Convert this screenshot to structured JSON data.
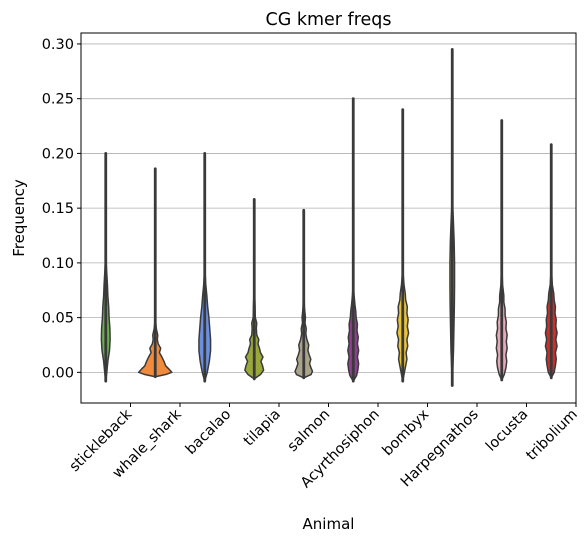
{
  "chart_data": {
    "type": "violin",
    "title": "CG kmer freqs",
    "xlabel": "Animal",
    "ylabel": "Frequency",
    "ylim": [
      -0.028,
      0.31
    ],
    "yticks": [
      0.0,
      0.05,
      0.1,
      0.15,
      0.2,
      0.25,
      0.3
    ],
    "ytick_labels": [
      "0.00",
      "0.05",
      "0.10",
      "0.15",
      "0.20",
      "0.25",
      "0.30"
    ],
    "grid": "horizontal",
    "categories": [
      "stickleback",
      "whale_shark",
      "bacalao",
      "tilapia",
      "salmon",
      "Acyrthosiphon",
      "bombyx",
      "Harpegnathos",
      "locusta",
      "tribolium"
    ],
    "series": [
      {
        "category": "stickleback",
        "color": "#6ab04c",
        "min": -0.008,
        "max": 0.2,
        "profile": [
          [
            -0.008,
            0.0
          ],
          [
            0.0,
            0.05
          ],
          [
            0.01,
            0.1
          ],
          [
            0.02,
            0.18
          ],
          [
            0.03,
            0.21
          ],
          [
            0.04,
            0.2
          ],
          [
            0.05,
            0.16
          ],
          [
            0.06,
            0.14
          ],
          [
            0.07,
            0.1
          ],
          [
            0.08,
            0.08
          ],
          [
            0.09,
            0.05
          ],
          [
            0.1,
            0.02
          ],
          [
            0.11,
            0.0
          ]
        ]
      },
      {
        "category": "whale_shark",
        "color": "#f08a3c",
        "min": -0.004,
        "max": 0.186,
        "profile": [
          [
            -0.004,
            0.0
          ],
          [
            -0.002,
            0.5
          ],
          [
            0.0,
            0.8
          ],
          [
            0.003,
            0.66
          ],
          [
            0.006,
            0.5
          ],
          [
            0.01,
            0.42
          ],
          [
            0.014,
            0.32
          ],
          [
            0.018,
            0.2
          ],
          [
            0.022,
            0.26
          ],
          [
            0.026,
            0.14
          ],
          [
            0.03,
            0.1
          ],
          [
            0.034,
            0.12
          ],
          [
            0.04,
            0.05
          ],
          [
            0.05,
            0.0
          ]
        ]
      },
      {
        "category": "bacalao",
        "color": "#6d8fe0",
        "min": -0.008,
        "max": 0.2,
        "profile": [
          [
            -0.008,
            0.0
          ],
          [
            0.0,
            0.12
          ],
          [
            0.01,
            0.22
          ],
          [
            0.02,
            0.28
          ],
          [
            0.03,
            0.28
          ],
          [
            0.04,
            0.24
          ],
          [
            0.05,
            0.2
          ],
          [
            0.06,
            0.14
          ],
          [
            0.07,
            0.1
          ],
          [
            0.08,
            0.05
          ],
          [
            0.09,
            0.02
          ],
          [
            0.1,
            0.0
          ]
        ]
      },
      {
        "category": "tilapia",
        "color": "#9aa83a",
        "min": -0.006,
        "max": 0.158,
        "profile": [
          [
            -0.006,
            0.0
          ],
          [
            -0.002,
            0.3
          ],
          [
            0.002,
            0.45
          ],
          [
            0.006,
            0.4
          ],
          [
            0.01,
            0.32
          ],
          [
            0.014,
            0.42
          ],
          [
            0.018,
            0.3
          ],
          [
            0.022,
            0.25
          ],
          [
            0.026,
            0.18
          ],
          [
            0.03,
            0.22
          ],
          [
            0.034,
            0.12
          ],
          [
            0.04,
            0.1
          ],
          [
            0.045,
            0.12
          ],
          [
            0.05,
            0.05
          ],
          [
            0.06,
            0.04
          ],
          [
            0.07,
            0.02
          ],
          [
            0.08,
            0.0
          ]
        ]
      },
      {
        "category": "salmon",
        "color": "#a9a48a",
        "min": -0.005,
        "max": 0.148,
        "profile": [
          [
            -0.005,
            0.0
          ],
          [
            -0.002,
            0.35
          ],
          [
            0.001,
            0.42
          ],
          [
            0.004,
            0.35
          ],
          [
            0.008,
            0.28
          ],
          [
            0.012,
            0.34
          ],
          [
            0.016,
            0.26
          ],
          [
            0.02,
            0.2
          ],
          [
            0.025,
            0.24
          ],
          [
            0.03,
            0.15
          ],
          [
            0.035,
            0.1
          ],
          [
            0.04,
            0.12
          ],
          [
            0.045,
            0.06
          ],
          [
            0.05,
            0.08
          ],
          [
            0.06,
            0.03
          ],
          [
            0.07,
            0.02
          ],
          [
            0.08,
            0.0
          ]
        ]
      },
      {
        "category": "Acyrthosiphon",
        "color": "#8e3f8e",
        "min": -0.008,
        "max": 0.25,
        "profile": [
          [
            -0.008,
            0.0
          ],
          [
            -0.003,
            0.16
          ],
          [
            0.002,
            0.22
          ],
          [
            0.008,
            0.26
          ],
          [
            0.014,
            0.2
          ],
          [
            0.02,
            0.26
          ],
          [
            0.026,
            0.2
          ],
          [
            0.032,
            0.24
          ],
          [
            0.038,
            0.18
          ],
          [
            0.044,
            0.2
          ],
          [
            0.05,
            0.14
          ],
          [
            0.056,
            0.12
          ],
          [
            0.062,
            0.08
          ],
          [
            0.07,
            0.04
          ],
          [
            0.08,
            0.0
          ]
        ]
      },
      {
        "category": "bombyx",
        "color": "#e8c23a",
        "min": -0.008,
        "max": 0.24,
        "profile": [
          [
            -0.008,
            0.0
          ],
          [
            0.0,
            0.08
          ],
          [
            0.006,
            0.14
          ],
          [
            0.012,
            0.2
          ],
          [
            0.018,
            0.16
          ],
          [
            0.024,
            0.24
          ],
          [
            0.03,
            0.2
          ],
          [
            0.036,
            0.28
          ],
          [
            0.042,
            0.22
          ],
          [
            0.048,
            0.26
          ],
          [
            0.054,
            0.2
          ],
          [
            0.06,
            0.22
          ],
          [
            0.066,
            0.14
          ],
          [
            0.072,
            0.12
          ],
          [
            0.08,
            0.06
          ],
          [
            0.09,
            0.02
          ],
          [
            0.1,
            0.0
          ]
        ]
      },
      {
        "category": "Harpegnathos",
        "color": "#d8c060",
        "min": -0.012,
        "max": 0.295,
        "profile": [
          [
            -0.012,
            0.0
          ],
          [
            0.0,
            0.02
          ],
          [
            0.02,
            0.06
          ],
          [
            0.04,
            0.08
          ],
          [
            0.06,
            0.1
          ],
          [
            0.08,
            0.11
          ],
          [
            0.1,
            0.11
          ],
          [
            0.12,
            0.09
          ],
          [
            0.14,
            0.05
          ],
          [
            0.16,
            0.0
          ]
        ]
      },
      {
        "category": "locusta",
        "color": "#e8a8b8",
        "min": -0.007,
        "max": 0.23,
        "profile": [
          [
            -0.007,
            0.0
          ],
          [
            -0.002,
            0.12
          ],
          [
            0.004,
            0.2
          ],
          [
            0.01,
            0.24
          ],
          [
            0.016,
            0.2
          ],
          [
            0.022,
            0.26
          ],
          [
            0.028,
            0.22
          ],
          [
            0.034,
            0.26
          ],
          [
            0.04,
            0.2
          ],
          [
            0.046,
            0.22
          ],
          [
            0.052,
            0.16
          ],
          [
            0.058,
            0.16
          ],
          [
            0.064,
            0.1
          ],
          [
            0.07,
            0.1
          ],
          [
            0.08,
            0.04
          ],
          [
            0.09,
            0.02
          ],
          [
            0.1,
            0.0
          ]
        ]
      },
      {
        "category": "tribolium",
        "color": "#c8302c",
        "min": -0.005,
        "max": 0.208,
        "profile": [
          [
            -0.005,
            0.0
          ],
          [
            0.0,
            0.14
          ],
          [
            0.006,
            0.2
          ],
          [
            0.012,
            0.24
          ],
          [
            0.018,
            0.2
          ],
          [
            0.024,
            0.28
          ],
          [
            0.03,
            0.22
          ],
          [
            0.036,
            0.28
          ],
          [
            0.042,
            0.22
          ],
          [
            0.048,
            0.24
          ],
          [
            0.054,
            0.18
          ],
          [
            0.06,
            0.2
          ],
          [
            0.066,
            0.14
          ],
          [
            0.072,
            0.12
          ],
          [
            0.08,
            0.05
          ],
          [
            0.09,
            0.02
          ],
          [
            0.1,
            0.0
          ]
        ]
      }
    ]
  }
}
